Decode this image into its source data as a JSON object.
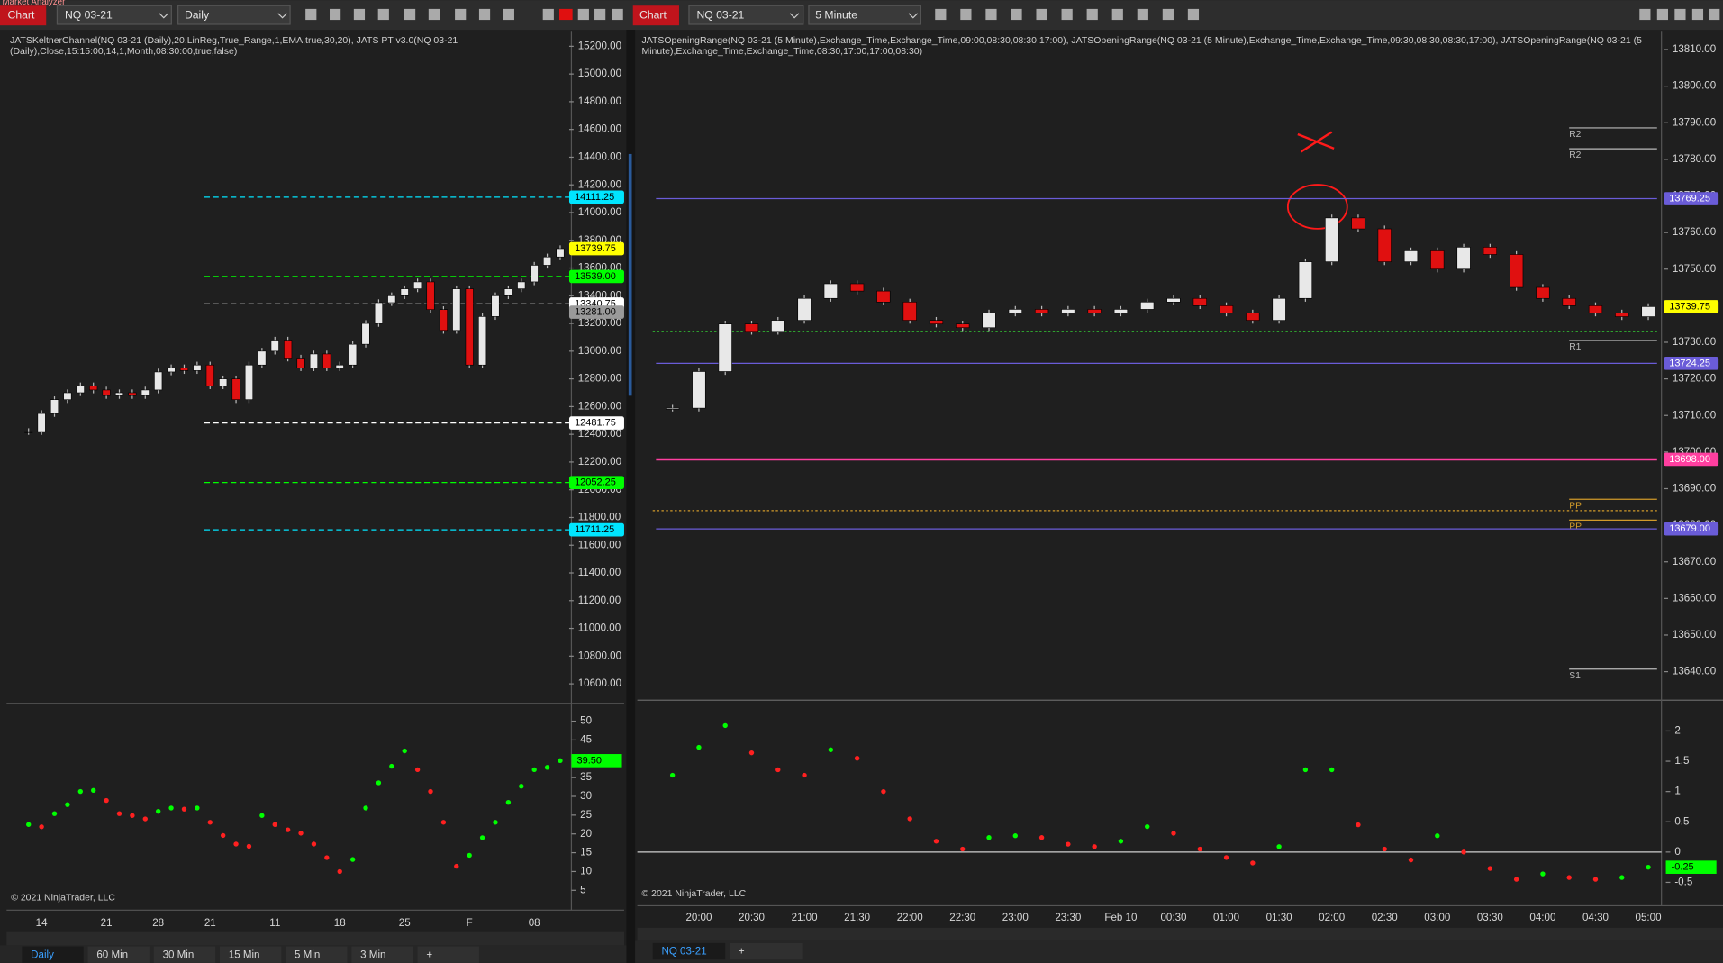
{
  "ui": {
    "window_title": "Market Analyzer",
    "left_toolbar": {
      "tab": "Chart",
      "instrument": "NQ 03-21",
      "period": "Daily"
    },
    "right_toolbar": {
      "tab": "Chart",
      "instrument": "NQ 03-21",
      "period": "5 Minute"
    },
    "left_indicators": [
      "JATSKeltnerChannel(NQ 03-21 (Daily),20,LinReg,True_Range,1,EMA,true,30,20), JATS PT v3.0(NQ 03-21",
      "(Daily),Close,15:15:00,14,1,Month,08:30:00,true,false)"
    ],
    "right_indicators": [
      "JATSOpeningRange(NQ 03-21 (5 Minute),Exchange_Time,Exchange_Time,09:00,08:30,08:30,17:00), JATSOpeningRange(NQ 03-21 (5 Minute),Exchange_Time,Exchange_Time,09:30,08:30,08:30,17:00), JATSOpeningRange(NQ 03-21 (5",
      "Minute),Exchange_Time,Exchange_Time,08:30,17:00,17:00,08:30)"
    ],
    "copyright": "© 2021 NinjaTrader, LLC",
    "left_tabs": [
      "Daily",
      "60 Min",
      "30 Min",
      "15 Min",
      "5 Min",
      "3 Min",
      "+"
    ],
    "right_tabs": [
      "NQ 03-21",
      "+"
    ]
  },
  "chart_data": [
    {
      "type": "candlestick",
      "color_up": "#e8e8e8",
      "color_down": "#e01010",
      "categories": [
        null,
        "14",
        null,
        null,
        null,
        null,
        "21",
        null,
        null,
        null,
        "28",
        null,
        null,
        null,
        "21",
        null,
        null,
        null,
        null,
        "11",
        null,
        null,
        null,
        null,
        "18",
        null,
        null,
        null,
        null,
        "25",
        null,
        null,
        null,
        null,
        "F",
        null,
        null,
        null,
        null,
        "08",
        null,
        null
      ],
      "values": [
        12420,
        12550,
        12650,
        12700,
        12750,
        12720,
        12680,
        12700,
        12680,
        12720,
        12850,
        12880,
        12860,
        12900,
        12750,
        12800,
        12650,
        12900,
        13000,
        13080,
        12950,
        12880,
        12980,
        12880,
        12900,
        13050,
        13200,
        13350,
        13400,
        13450,
        13500,
        13300,
        13150,
        13450,
        12900,
        13250,
        13400,
        13450,
        13500,
        13620,
        13680,
        13740
      ],
      "ylim": [
        10458,
        15311
      ],
      "yticks": [
        {
          "value": 10600,
          "label": "10600.00"
        },
        {
          "value": 10800,
          "label": "10800.00"
        },
        {
          "value": 11000,
          "label": "11000.00"
        },
        {
          "value": 11200,
          "label": "11200.00"
        },
        {
          "value": 11400,
          "label": "11400.00"
        },
        {
          "value": 11600,
          "label": "11600.00"
        },
        {
          "value": 11800,
          "label": "11800.00"
        },
        {
          "value": 12000,
          "label": "12000.00"
        },
        {
          "value": 12200,
          "label": "12200.00"
        },
        {
          "value": 12400,
          "label": "12400.00"
        },
        {
          "value": 12600,
          "label": "12600.00"
        },
        {
          "value": 12800,
          "label": "12800.00"
        },
        {
          "value": 13000,
          "label": "13000.00"
        },
        {
          "value": 13200,
          "label": "13200.00"
        },
        {
          "value": 13400,
          "label": "13400.00"
        },
        {
          "value": 13600,
          "label": "13600.00"
        },
        {
          "value": 13800,
          "label": "13800.00"
        },
        {
          "value": 14000,
          "label": "14000.00"
        },
        {
          "value": 14200,
          "label": "14200.00"
        },
        {
          "value": 14400,
          "label": "14400.00"
        },
        {
          "value": 14600,
          "label": "14600.00"
        },
        {
          "value": 14800,
          "label": "14800.00"
        },
        {
          "value": 15000,
          "label": "15000.00"
        },
        {
          "value": 15200,
          "label": "15200.00"
        }
      ],
      "levels": [
        {
          "value": 14111.25,
          "label": "14111.25",
          "color": "#00e5ff"
        },
        {
          "value": 13739.75,
          "label": "13739.75",
          "color": "#ffff00",
          "line": false
        },
        {
          "value": 13539,
          "label": "13539.00",
          "color": "#00ff00"
        },
        {
          "value": 13340.75,
          "label": "13340.75",
          "color": "#ffffff"
        },
        {
          "value": 13281,
          "label": "13281.00",
          "color": "#9a9a9a",
          "line": false
        },
        {
          "value": 12481.75,
          "label": "12481.75",
          "color": "#ffffff"
        },
        {
          "value": 12052.25,
          "label": "12052.25",
          "color": "#00ff00"
        },
        {
          "value": 11711.25,
          "label": "11711.25",
          "color": "#00e5ff"
        }
      ]
    },
    {
      "type": "dots",
      "color_up": "#00ff00",
      "color_down": "#ff2020",
      "values": [
        22.5,
        21.9,
        25.4,
        27.8,
        31.3,
        31.6,
        28.9,
        25.4,
        24.9,
        24,
        26,
        26.9,
        26.6,
        26.9,
        23.1,
        19.6,
        17.3,
        16.7,
        24.9,
        22.5,
        21.1,
        20.2,
        17.3,
        13.7,
        10,
        13.2,
        26.9,
        33.6,
        38,
        42.1,
        37.1,
        31.3,
        23.1,
        11.4,
        14.3,
        19,
        23.1,
        28.4,
        32.7,
        37.1,
        37.7,
        39.5
      ],
      "ylim": [
        0.6,
        54.7
      ],
      "yticks": [
        5,
        10,
        15,
        20,
        25,
        30,
        35,
        40,
        45,
        50
      ],
      "badge": {
        "value": 39.5,
        "label": "39.50",
        "color": "#00ff00"
      }
    },
    {
      "type": "candlestick",
      "color_up": "#e8e8e8",
      "color_down": "#e01010",
      "categories": [
        null,
        "20:00",
        null,
        "20:30",
        null,
        "21:00",
        null,
        "21:30",
        null,
        "22:00",
        null,
        "22:30",
        null,
        "23:00",
        null,
        "23:30",
        null,
        "Feb 10",
        null,
        "00:30",
        null,
        "01:00",
        null,
        "01:30",
        null,
        "02:00",
        null,
        "02:30",
        null,
        "03:00",
        null,
        "03:30",
        null,
        "04:00",
        null,
        "04:30",
        null,
        "05:00"
      ],
      "values": [
        13712,
        13722,
        13735,
        13733,
        13736,
        13742,
        13746,
        13744,
        13741,
        13736,
        13735,
        13734,
        13738,
        13739,
        13738,
        13739,
        13738,
        13739,
        13741,
        13742,
        13740,
        13738,
        13736,
        13742,
        13752,
        13764,
        13761,
        13752,
        13755,
        13750,
        13756,
        13754,
        13745,
        13742,
        13740,
        13738,
        13737,
        13739.75
      ],
      "ylim": [
        13632.5,
        13815.1
      ],
      "yticks": [
        {
          "value": 13640,
          "label": "13640.00"
        },
        {
          "value": 13650,
          "label": "13650.00"
        },
        {
          "value": 13660,
          "label": "13660.00"
        },
        {
          "value": 13670,
          "label": "13670.00"
        },
        {
          "value": 13680,
          "label": "13680.00"
        },
        {
          "value": 13690,
          "label": "13690.00"
        },
        {
          "value": 13700,
          "label": "13700.00"
        },
        {
          "value": 13710,
          "label": "13710.00"
        },
        {
          "value": 13720,
          "label": "13720.00"
        },
        {
          "value": 13730,
          "label": "13730.00"
        },
        {
          "value": 13740,
          "label": "13740.00"
        },
        {
          "value": 13750,
          "label": "13750.00"
        },
        {
          "value": 13760,
          "label": "13760.00"
        },
        {
          "value": 13770,
          "label": "13770.00"
        },
        {
          "value": 13780,
          "label": "13780.00"
        },
        {
          "value": 13790,
          "label": "13790.00"
        },
        {
          "value": 13800,
          "label": "13800.00"
        },
        {
          "value": 13810,
          "label": "13810.00"
        }
      ],
      "levels": [
        {
          "value": 13769.25,
          "label": "13769.25",
          "color": "#6a5cd8"
        },
        {
          "value": 13739.75,
          "label": "13739.75",
          "color": "#ffff00",
          "line": false
        },
        {
          "value": 13724.25,
          "label": "13724.25",
          "color": "#6a5cd8"
        },
        {
          "value": 13698,
          "label": "13698.00",
          "color": "#ff3fa0"
        },
        {
          "value": 13679,
          "label": "13679.00",
          "color": "#6a5cd8"
        }
      ],
      "lines": [
        {
          "value": 13733,
          "color": "#33cc33"
        },
        {
          "value": 13684,
          "color": "#d09a2a"
        }
      ],
      "pivots": [
        {
          "label": "R2",
          "value": 13788.6,
          "color": "#bbbbbb"
        },
        {
          "label": "R2",
          "value": 13782.9,
          "color": "#bbbbbb"
        },
        {
          "label": "R1",
          "value": 13730.5,
          "color": "#bbbbbb"
        },
        {
          "label": "PP",
          "value": 13687.1,
          "color": "#d09a2a"
        },
        {
          "label": "PP",
          "value": 13681.4,
          "color": "#d09a2a"
        },
        {
          "label": "S1",
          "value": 13640.7,
          "color": "#bbbbbb"
        }
      ]
    },
    {
      "type": "dots",
      "color_up": "#00ff00",
      "color_down": "#ff2020",
      "values": [
        1.27,
        1.73,
        2.09,
        1.64,
        1.36,
        1.27,
        1.69,
        1.55,
        1.0,
        0.55,
        0.18,
        0.05,
        0.24,
        0.27,
        0.24,
        0.13,
        0.09,
        0.18,
        0.42,
        0.31,
        0.05,
        -0.09,
        -0.18,
        0.09,
        1.36,
        1.36,
        0.45,
        0.05,
        -0.13,
        0.27,
        0,
        -0.27,
        -0.45,
        -0.36,
        -0.42,
        -0.45,
        -0.42,
        -0.25
      ],
      "ylim": [
        -0.85,
        2.49
      ],
      "yticks": [
        -0.5,
        0,
        0.5,
        1,
        1.5,
        2
      ],
      "reference_line": 0,
      "badge": {
        "value": -0.25,
        "label": "-0.25",
        "color": "#00ff00"
      }
    }
  ]
}
